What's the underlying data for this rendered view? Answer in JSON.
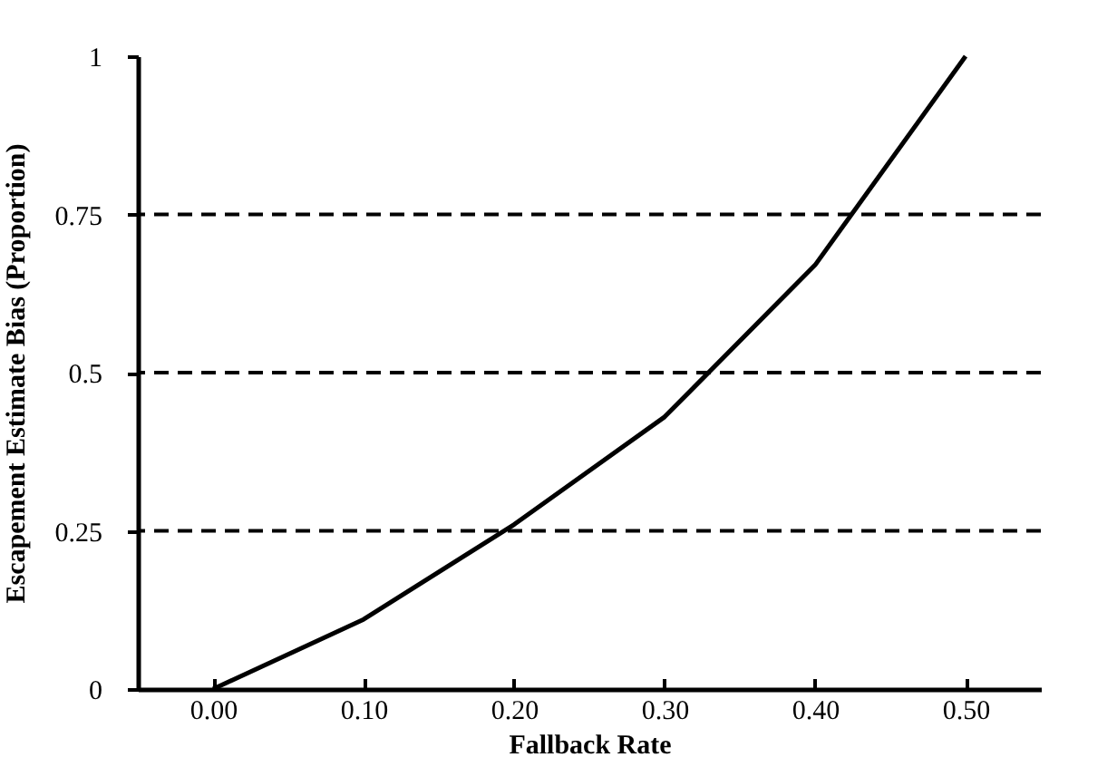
{
  "chart_data": {
    "type": "line",
    "xlabel": "Fallback Rate",
    "ylabel": "Escapement Estimate Bias (Proportion)",
    "x": [
      0,
      0.1,
      0.2,
      0.3,
      0.4,
      0.5
    ],
    "series": [
      {
        "color": "#000000",
        "values": [
          0,
          0.11,
          0.26,
          0.43,
          0.67,
          1.0
        ]
      }
    ],
    "xlim": [
      -0.05,
      0.55
    ],
    "xticks": [
      {
        "value": 0,
        "label": "0.00"
      },
      {
        "value": 0.1,
        "label": "0.10"
      },
      {
        "value": 0.2,
        "label": "0.20"
      },
      {
        "value": 0.3,
        "label": "0.30"
      },
      {
        "value": 0.4,
        "label": "0.40"
      },
      {
        "value": 0.5,
        "label": "0.50"
      }
    ],
    "ylim": [
      0,
      1
    ],
    "yticks": [
      0,
      0.25,
      0.5,
      0.75,
      1
    ],
    "ref_lines": [
      {
        "axis": "y",
        "value": 0.25,
        "line_style": "dashed",
        "color": "#000000"
      },
      {
        "axis": "y",
        "value": 0.5,
        "line_style": "dashed",
        "color": "#000000"
      },
      {
        "axis": "y",
        "value": 0.75,
        "line_style": "dashed",
        "color": "#000000"
      }
    ],
    "grid": false,
    "marker": "none",
    "line_style": "solid"
  }
}
